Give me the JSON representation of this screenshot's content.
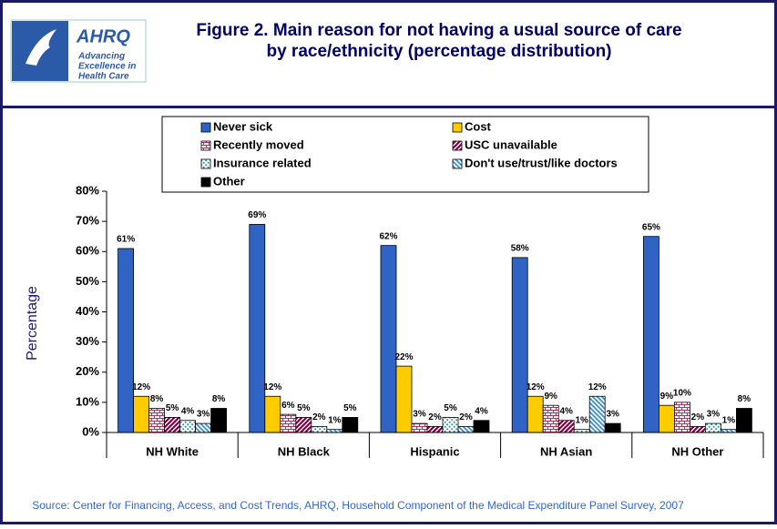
{
  "logo": {
    "name": "AHRQ",
    "tagline": [
      "Advancing",
      "Excellence in",
      "Health Care"
    ]
  },
  "chart_data": {
    "type": "bar",
    "title": [
      "Figure 2. Main reason for not having a usual source of care",
      "by race/ethnicity (percentage distribution)"
    ],
    "y_label": "Percentage",
    "source": "Source: Center for Financing, Access, and Cost Trends, AHRQ, Household Component of the Medical Expenditure Panel Survey, 2007",
    "categories": [
      "NH White",
      "NH Black",
      "Hispanic",
      "NH Asian",
      "NH Other"
    ],
    "ylim": [
      0,
      80
    ],
    "yticks": [
      {
        "value": 0,
        "label": "0%"
      },
      {
        "value": 10,
        "label": "10%"
      },
      {
        "value": 20,
        "label": "20%"
      },
      {
        "value": 30,
        "label": "30%"
      },
      {
        "value": 40,
        "label": "40%"
      },
      {
        "value": 50,
        "label": "50%"
      },
      {
        "value": 60,
        "label": "60%"
      },
      {
        "value": 70,
        "label": "70%"
      },
      {
        "value": 80,
        "label": "80%"
      }
    ],
    "series": [
      {
        "name": "Never sick",
        "color": "#2f63c4",
        "values": [
          61,
          69,
          62,
          58,
          65
        ],
        "value_labels": [
          "61%",
          "69%",
          "62%",
          "58%",
          "65%"
        ]
      },
      {
        "name": "Cost",
        "color": "#ffcc00",
        "values": [
          12,
          12,
          22,
          12,
          9
        ],
        "value_labels": [
          "12%",
          "12%",
          "22%",
          "12%",
          "9%"
        ]
      },
      {
        "name": "Recently moved",
        "color": "#b03060",
        "values": [
          8,
          6,
          3,
          9,
          10
        ],
        "value_labels": [
          "8%",
          "6%",
          "3%",
          "9%",
          "10%"
        ]
      },
      {
        "name": "USC unavailable",
        "color": "#800040",
        "values": [
          5,
          5,
          2,
          4,
          2
        ],
        "value_labels": [
          "5%",
          "5%",
          "2%",
          "4%",
          "2%"
        ]
      },
      {
        "name": "Insurance related",
        "color": "#1a8fa0",
        "values": [
          4,
          2,
          5,
          1,
          3
        ],
        "value_labels": [
          "4%",
          "2%",
          "5%",
          "1%",
          "3%"
        ]
      },
      {
        "name": "Don't use/trust/like doctors",
        "color": "#3a8fd0",
        "values": [
          3,
          1,
          2,
          12,
          1
        ],
        "value_labels": [
          "3%",
          "1%",
          "2%",
          "12%",
          "1%"
        ]
      },
      {
        "name": "Other",
        "color": "#000000",
        "values": [
          8,
          5,
          4,
          3,
          8
        ],
        "value_labels": [
          "8%",
          "5%",
          "4%",
          "3%",
          "8%"
        ]
      }
    ]
  }
}
